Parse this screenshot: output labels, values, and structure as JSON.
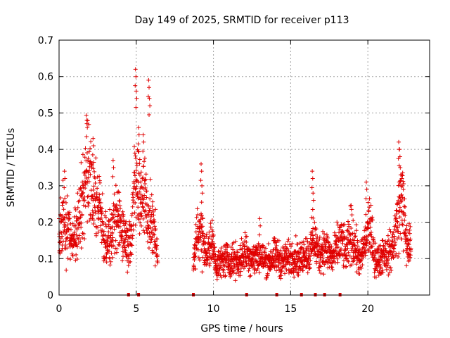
{
  "chart_data": {
    "type": "scatter",
    "title": "Day 149 of 2025, SRMTID for receiver p113",
    "xlabel": "GPS time / hours",
    "ylabel": "SRMTID / TECUs",
    "xlim": [
      0,
      24
    ],
    "ylim": [
      0,
      0.7
    ],
    "xticks": [
      0,
      5,
      10,
      15,
      20
    ],
    "xtick_labels": [
      "0",
      "5",
      "10",
      "15",
      "20"
    ],
    "yticks": [
      0,
      0.1,
      0.2,
      0.3,
      0.4,
      0.5,
      0.6,
      0.7
    ],
    "ytick_labels": [
      "0",
      "0.1",
      "0.2",
      "0.3",
      "0.4",
      "0.5",
      "0.6",
      "0.7"
    ],
    "grid": true,
    "marker": "+",
    "color": "#e00000",
    "segments": [
      {
        "x": [
          0.0,
          0.3,
          0.6,
          0.9,
          1.2,
          1.5,
          1.8,
          2.1,
          2.4,
          2.7,
          3.0,
          3.3,
          3.6,
          3.9,
          4.2,
          4.5,
          4.8,
          5.0,
          5.2,
          5.5,
          5.8,
          6.1,
          6.4
        ],
        "y": [
          0.15,
          0.22,
          0.18,
          0.13,
          0.2,
          0.26,
          0.33,
          0.3,
          0.25,
          0.2,
          0.16,
          0.15,
          0.19,
          0.21,
          0.17,
          0.13,
          0.24,
          0.32,
          0.27,
          0.29,
          0.21,
          0.18,
          0.12
        ]
      },
      {
        "x": [
          8.7,
          9.0,
          9.3,
          9.6,
          9.9,
          10.2,
          10.5,
          10.8,
          11.1,
          11.4,
          11.7,
          12.0,
          12.3,
          12.6,
          12.9,
          13.2,
          13.5,
          13.8,
          14.1,
          14.4,
          14.7,
          15.0,
          15.3,
          15.6,
          15.9,
          16.2,
          16.5,
          16.8,
          17.1,
          17.4,
          17.7,
          18.0,
          18.3,
          18.6,
          18.9,
          19.2,
          19.5,
          19.8,
          20.1,
          20.4,
          20.7,
          21.0,
          21.3,
          21.6,
          21.9,
          22.2,
          22.5,
          22.8
        ],
        "y": [
          0.08,
          0.18,
          0.16,
          0.11,
          0.15,
          0.08,
          0.09,
          0.1,
          0.09,
          0.1,
          0.09,
          0.12,
          0.11,
          0.1,
          0.11,
          0.1,
          0.09,
          0.1,
          0.11,
          0.09,
          0.1,
          0.1,
          0.11,
          0.09,
          0.12,
          0.11,
          0.16,
          0.11,
          0.13,
          0.12,
          0.1,
          0.13,
          0.15,
          0.11,
          0.17,
          0.13,
          0.09,
          0.14,
          0.2,
          0.11,
          0.09,
          0.12,
          0.11,
          0.13,
          0.2,
          0.27,
          0.14,
          0.13
        ]
      }
    ],
    "peaks": [
      {
        "x": 0.35,
        "y": 0.34
      },
      {
        "x": 1.8,
        "y": 0.48
      },
      {
        "x": 2.2,
        "y": 0.43
      },
      {
        "x": 3.5,
        "y": 0.37
      },
      {
        "x": 4.95,
        "y": 0.62
      },
      {
        "x": 5.0,
        "y": 0.56
      },
      {
        "x": 5.15,
        "y": 0.46
      },
      {
        "x": 5.45,
        "y": 0.44
      },
      {
        "x": 5.8,
        "y": 0.59
      },
      {
        "x": 5.85,
        "y": 0.54
      },
      {
        "x": 9.2,
        "y": 0.36
      },
      {
        "x": 9.25,
        "y": 0.3
      },
      {
        "x": 13.0,
        "y": 0.21
      },
      {
        "x": 16.4,
        "y": 0.34
      },
      {
        "x": 16.45,
        "y": 0.28
      },
      {
        "x": 19.9,
        "y": 0.31
      },
      {
        "x": 22.0,
        "y": 0.42
      },
      {
        "x": 22.05,
        "y": 0.4
      },
      {
        "x": 22.1,
        "y": 0.35
      },
      {
        "x": 22.2,
        "y": 0.32
      }
    ],
    "zero_markers": [
      4.5,
      5.15,
      8.7,
      12.15,
      14.1,
      15.7,
      16.6,
      17.2,
      18.2
    ]
  }
}
